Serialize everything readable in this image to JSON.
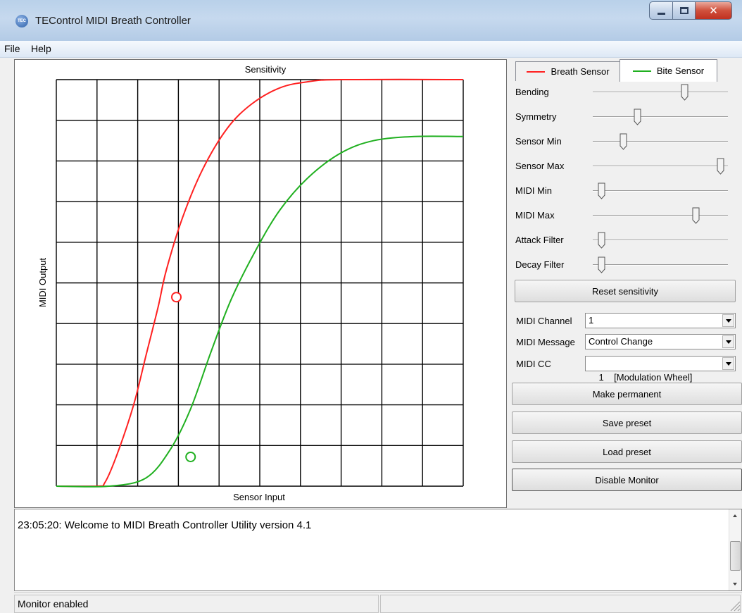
{
  "window": {
    "title": "TEControl MIDI Breath Controller",
    "icon": "app-logo-icon"
  },
  "menu": [
    "File",
    "Help"
  ],
  "graph": {
    "title": "Sensitivity",
    "xlabel": "Sensor Input",
    "ylabel": "MIDI Output",
    "colors": {
      "breath": "#ff2020",
      "bite": "#20b020"
    }
  },
  "chart_data": {
    "type": "line",
    "title": "Sensitivity",
    "xlabel": "Sensor Input",
    "ylabel": "MIDI Output",
    "xlim": [
      0,
      10
    ],
    "ylim": [
      0,
      10
    ],
    "grid": true,
    "series": [
      {
        "name": "Breath Sensor",
        "color": "#ff2020",
        "x": [
          0,
          1.0,
          1.2,
          1.5,
          1.9,
          2.2,
          2.5,
          2.7,
          3.1,
          3.6,
          4.2,
          4.8,
          5.5,
          6.2,
          7.0,
          10
        ],
        "y": [
          0,
          0,
          0.1,
          0.8,
          2.0,
          3.2,
          4.4,
          5.3,
          6.6,
          7.8,
          8.8,
          9.4,
          9.8,
          9.95,
          10,
          10
        ]
      },
      {
        "name": "Bite Sensor",
        "color": "#20b020",
        "x": [
          0,
          1.3,
          2.2,
          2.8,
          3.3,
          3.8,
          4.3,
          4.9,
          5.5,
          6.2,
          7.0,
          7.8,
          8.8,
          10
        ],
        "y": [
          0,
          0,
          0.2,
          0.9,
          1.9,
          3.3,
          4.6,
          5.8,
          6.8,
          7.6,
          8.2,
          8.5,
          8.6,
          8.6
        ]
      }
    ],
    "markers": [
      {
        "series": "Breath Sensor",
        "x": 2.95,
        "y": 4.65
      },
      {
        "series": "Bite Sensor",
        "x": 3.3,
        "y": 0.72
      }
    ]
  },
  "tabs": [
    {
      "label": "Breath Sensor",
      "color": "#ff2020",
      "active": false
    },
    {
      "label": "Bite Sensor",
      "color": "#20b020",
      "active": true
    }
  ],
  "sliders": [
    {
      "label": "Bending",
      "value": 0.69
    },
    {
      "label": "Symmetry",
      "value": 0.32
    },
    {
      "label": "Sensor Min",
      "value": 0.21
    },
    {
      "label": "Sensor Max",
      "value": 0.97
    },
    {
      "label": "MIDI Min",
      "value": 0.04
    },
    {
      "label": "MIDI Max",
      "value": 0.78
    },
    {
      "label": "Attack Filter",
      "value": 0.04
    },
    {
      "label": "Decay Filter",
      "value": 0.04
    }
  ],
  "buttons": {
    "reset": "Reset sensitivity",
    "make_permanent": "Make permanent",
    "save_preset": "Save preset",
    "load_preset": "Load preset",
    "disable_monitor": "Disable Monitor"
  },
  "midi": {
    "channel_label": "MIDI Channel",
    "channel_value": "1",
    "message_label": "MIDI Message",
    "message_value": "Control Change",
    "cc_label": "MIDI CC",
    "cc_value": "1    [Modulation Wheel]"
  },
  "log": [
    "23:05:20: Welcome to MIDI Breath Controller Utility version 4.1"
  ],
  "status": {
    "text": "Monitor enabled"
  }
}
